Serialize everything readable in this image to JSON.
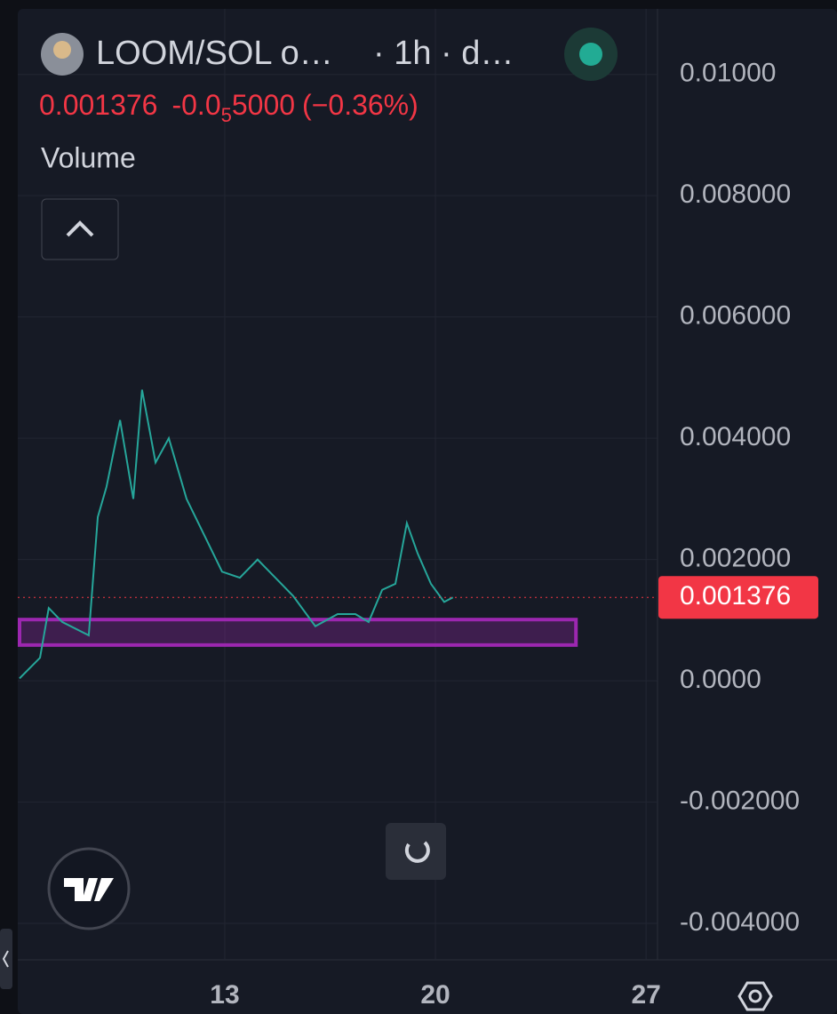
{
  "header": {
    "symbol": "LOOM/SOL o…",
    "interval": "· 1h · d…",
    "change_prefix": "-0.0",
    "change_sub": "5",
    "change_rest": "5000",
    "change_pct": "(−0.36%)",
    "study": "Volume"
  },
  "chart_data": {
    "type": "line",
    "color": "#26a69a",
    "x": [
      6.18,
      6.86,
      7.15,
      7.6,
      8.48,
      8.78,
      9.07,
      9.52,
      9.96,
      10.25,
      10.7,
      11.14,
      11.73,
      12.32,
      12.91,
      13.5,
      14.09,
      14.68,
      15.27,
      16.01,
      16.75,
      17.34,
      17.78,
      18.23,
      18.67,
      19.05,
      19.41,
      19.85,
      20.29,
      20.58
    ],
    "values": [
      4e-05,
      0.00038,
      0.0012,
      0.00097,
      0.00075,
      0.0027,
      0.0032,
      0.0043,
      0.003,
      0.0048,
      0.0036,
      0.004,
      0.003,
      0.0024,
      0.0018,
      0.0017,
      0.002,
      0.0017,
      0.0014,
      0.0009,
      0.0011,
      0.0011,
      0.00097,
      0.0015,
      0.0016,
      0.0026,
      0.0021,
      0.0016,
      0.0013,
      0.001376
    ],
    "last_price": 0.001376,
    "last_price_color": "#f23645",
    "zone": {
      "x": [
        6.18,
        24.67
      ],
      "y": [
        0.00059,
        0.00101
      ],
      "color": "#9c27b0"
    },
    "xlim": [
      6.18,
      27.38
    ],
    "xticks": [
      13,
      20,
      27
    ],
    "ylim": [
      -0.0046,
      0.01108
    ],
    "yticks": [
      {
        "value": 0.01,
        "label": "0.01000"
      },
      {
        "value": 0.008,
        "label": "0.008000"
      },
      {
        "value": 0.006,
        "label": "0.006000"
      },
      {
        "value": 0.004,
        "label": "0.004000"
      },
      {
        "value": 0.002,
        "label": "0.002000"
      },
      {
        "value": 0,
        "label": "0.0000"
      },
      {
        "value": -0.002,
        "label": "-0.002000"
      },
      {
        "value": -0.004,
        "label": "-0.004000"
      }
    ],
    "grid": true
  }
}
